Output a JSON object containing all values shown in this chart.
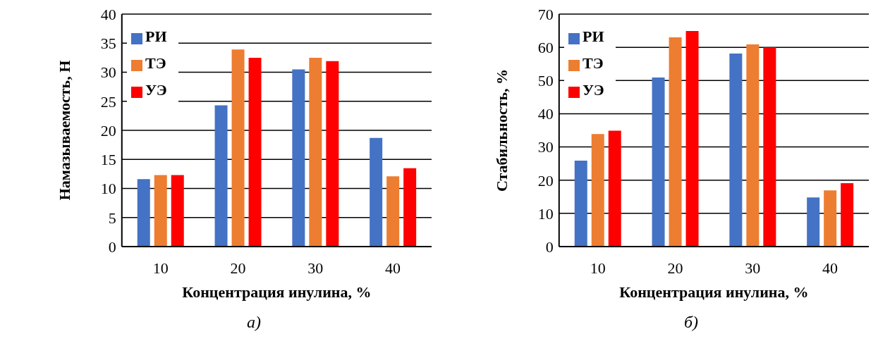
{
  "chart_data": [
    {
      "type": "bar",
      "xlabel": "Концентрация инулина, %",
      "ylabel": "Намазываемость, Н",
      "categories": [
        "10",
        "20",
        "30",
        "40"
      ],
      "series": [
        {
          "name": "РИ",
          "color": "#4472c4",
          "values": [
            11.6,
            24.3,
            30.5,
            18.7
          ]
        },
        {
          "name": "ТЭ",
          "color": "#ed7d31",
          "values": [
            12.3,
            33.9,
            32.5,
            12.1
          ]
        },
        {
          "name": "УЭ",
          "color": "#ff0000",
          "values": [
            12.3,
            32.5,
            31.9,
            13.5
          ]
        }
      ],
      "ylim": [
        0,
        40
      ],
      "yticks": [
        0,
        5,
        10,
        15,
        20,
        25,
        30,
        35,
        40
      ],
      "grid": "y",
      "legend": "top left",
      "annotations": [
        "а)"
      ]
    },
    {
      "type": "bar",
      "xlabel": "Концентрация инулина, %",
      "ylabel": "Стабильность, %",
      "categories": [
        "10",
        "20",
        "30",
        "40"
      ],
      "series": [
        {
          "name": "РИ",
          "color": "#4472c4",
          "values": [
            25.9,
            50.9,
            58.1,
            14.8
          ]
        },
        {
          "name": "ТЭ",
          "color": "#ed7d31",
          "values": [
            33.9,
            63.0,
            60.9,
            16.9
          ]
        },
        {
          "name": "УЭ",
          "color": "#ff0000",
          "values": [
            34.9,
            64.9,
            60.0,
            19.1
          ]
        }
      ],
      "ylim": [
        0,
        70
      ],
      "yticks": [
        0,
        10,
        20,
        30,
        40,
        50,
        60,
        70
      ],
      "grid": "y",
      "legend": "top left",
      "annotations": [
        "б)"
      ]
    }
  ]
}
